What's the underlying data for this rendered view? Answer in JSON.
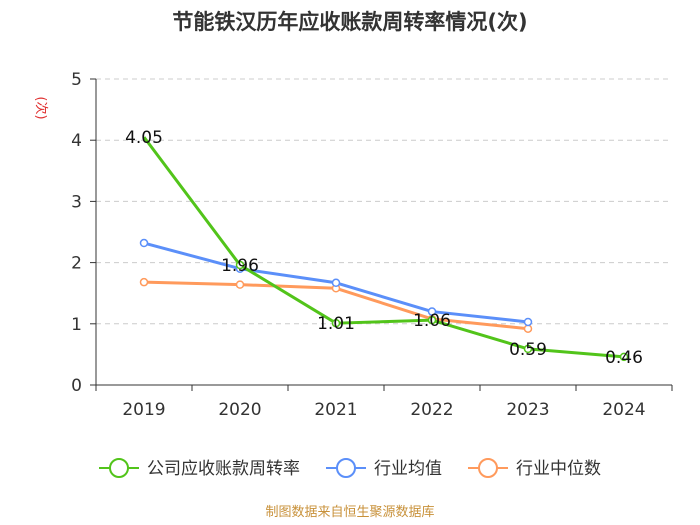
{
  "chart_data": {
    "type": "line",
    "title": "节能铁汉历年应收账款周转率情况(次)",
    "ylabel": "(次)",
    "xlabel": "",
    "categories": [
      "2019",
      "2020",
      "2021",
      "2022",
      "2023",
      "2024"
    ],
    "ylim": [
      0,
      5
    ],
    "yticks": [
      0,
      1,
      2,
      3,
      4,
      5
    ],
    "grid": "horizontal dashed",
    "legend_position": "bottom",
    "series": [
      {
        "name": "公司应收账款周转率",
        "color": "#52c41a",
        "values": [
          4.05,
          1.96,
          1.01,
          1.06,
          0.59,
          0.46
        ],
        "data_labels": [
          "4.05",
          "1.96",
          "1.01",
          "1.06",
          "0.59",
          "0.46"
        ]
      },
      {
        "name": "行业均值",
        "color": "#5b8ff9",
        "values": [
          2.32,
          1.9,
          1.67,
          1.2,
          1.03,
          null
        ]
      },
      {
        "name": "行业中位数",
        "color": "#ff9a5c",
        "values": [
          1.68,
          1.64,
          1.58,
          1.08,
          0.92,
          null
        ]
      }
    ],
    "source": "制图数据来自恒生聚源数据库"
  }
}
